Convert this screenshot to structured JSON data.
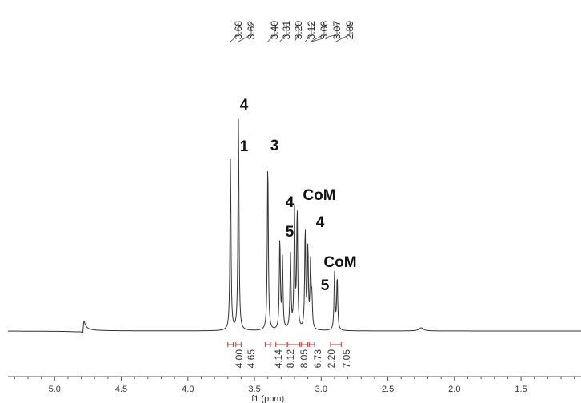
{
  "chart_data": {
    "type": "line",
    "title": "",
    "xlabel": "f1 (ppm)",
    "ylabel": "",
    "xlim": [
      5.35,
      1.05
    ],
    "x_reversed": true,
    "grid": false,
    "x_ticks": [
      "5.0",
      "4.5",
      "4.0",
      "3.5",
      "3.0",
      "2.5",
      "2.0",
      "1.5"
    ],
    "x_tick_values": [
      5.0,
      4.5,
      4.0,
      3.5,
      3.0,
      2.5,
      2.0,
      1.5
    ],
    "peaks": [
      {
        "ppm": 3.68,
        "intensity": 0.81
      },
      {
        "ppm": 3.62,
        "intensity": 1.0
      },
      {
        "ppm": 3.4,
        "intensity": 0.8
      },
      {
        "ppm": 3.31,
        "intensity": 0.43
      },
      {
        "ppm": 3.29,
        "intensity": 0.33
      },
      {
        "ppm": 3.23,
        "intensity": 0.35
      },
      {
        "ppm": 3.2,
        "intensity": 0.55
      },
      {
        "ppm": 3.18,
        "intensity": 0.56
      },
      {
        "ppm": 3.12,
        "intensity": 0.47
      },
      {
        "ppm": 3.1,
        "intensity": 0.38
      },
      {
        "ppm": 3.08,
        "intensity": 0.3
      },
      {
        "ppm": 3.07,
        "intensity": 0.14
      },
      {
        "ppm": 2.9,
        "intensity": 0.27
      },
      {
        "ppm": 2.88,
        "intensity": 0.25
      },
      {
        "ppm": 4.79,
        "intensity": 0.02
      },
      {
        "ppm": 2.25,
        "intensity": 0.015
      }
    ],
    "peak_labels": [
      "3.68",
      "3.62",
      "3.40",
      "3.31",
      "3.20",
      "3.12",
      "3.08",
      "3.07",
      "2.89"
    ],
    "peak_label_ppm": [
      3.68,
      3.62,
      3.4,
      3.31,
      3.2,
      3.12,
      3.08,
      3.07,
      2.89
    ],
    "integrals": [
      {
        "value": "4.00",
        "ppm": 3.68
      },
      {
        "value": "4.65",
        "ppm": 3.62
      },
      {
        "value": "4.14",
        "ppm": 3.4
      },
      {
        "value": "8.12",
        "ppm": 3.31
      },
      {
        "value": "8.05",
        "ppm": 3.2
      },
      {
        "value": "6.73",
        "ppm": 3.13
      },
      {
        "value": "2.20",
        "ppm": 3.07
      },
      {
        "value": "7.05",
        "ppm": 2.89
      }
    ],
    "integral_ranges": [
      [
        3.7,
        3.66
      ],
      [
        3.64,
        3.6
      ],
      [
        3.42,
        3.38
      ],
      [
        3.34,
        3.26
      ],
      [
        3.25,
        3.16
      ],
      [
        3.15,
        3.1
      ],
      [
        3.09,
        3.05
      ],
      [
        2.93,
        2.85
      ]
    ],
    "annotations": [
      {
        "text": "4",
        "ppm": 3.625,
        "level": 1.1
      },
      {
        "text": "1",
        "ppm": 3.685,
        "level": 0.9
      },
      {
        "text": "3",
        "ppm": 3.405,
        "level": 0.9
      },
      {
        "text": "4",
        "ppm": 3.305,
        "level": 0.6
      },
      {
        "text": "5",
        "ppm": 3.305,
        "level": 0.46
      },
      {
        "text": "CoM",
        "ppm": 3.18,
        "level": 0.63
      },
      {
        "text": "4",
        "ppm": 3.1,
        "level": 0.51
      },
      {
        "text": "5",
        "ppm": 3.04,
        "level": 0.22
      },
      {
        "text": "CoM",
        "ppm": 2.89,
        "level": 0.33
      }
    ],
    "line_color": "#333333",
    "integral_color": "#cc3333"
  }
}
